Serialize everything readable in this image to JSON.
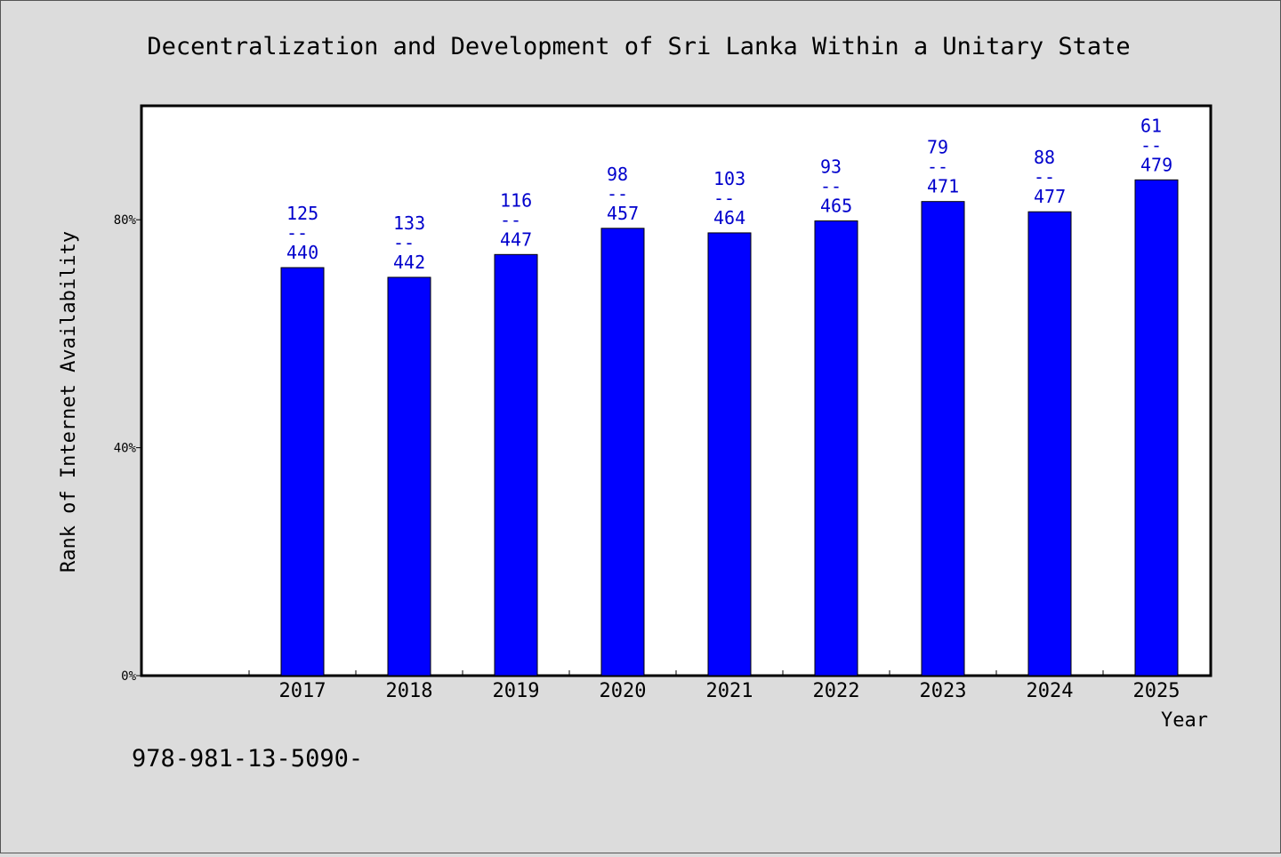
{
  "chart_data": {
    "type": "bar",
    "title": "Decentralization and Development of Sri Lanka Within a Unitary State",
    "xlabel": "Year",
    "ylabel": "Rank of Internet Availability",
    "categories": [
      "2017",
      "2018",
      "2019",
      "2020",
      "2021",
      "2022",
      "2023",
      "2024",
      "2025"
    ],
    "series": [
      {
        "values": [
          71.6,
          69.9,
          73.9,
          78.5,
          77.7,
          79.8,
          83.2,
          81.4,
          87.0
        ],
        "rank": [
          125,
          133,
          116,
          98,
          103,
          93,
          79,
          88,
          61
        ],
        "total": [
          440,
          442,
          447,
          457,
          464,
          465,
          471,
          477,
          479
        ]
      }
    ],
    "ylim": [
      0,
      100
    ],
    "yticks": [
      0,
      40,
      80
    ],
    "ytick_labels": [
      "0%",
      "40%",
      "80%"
    ],
    "separator": "--",
    "bar_color": "#0000ff",
    "label_color": "#0000cc",
    "grid": false
  },
  "footnote": "978-981-13-5090-"
}
